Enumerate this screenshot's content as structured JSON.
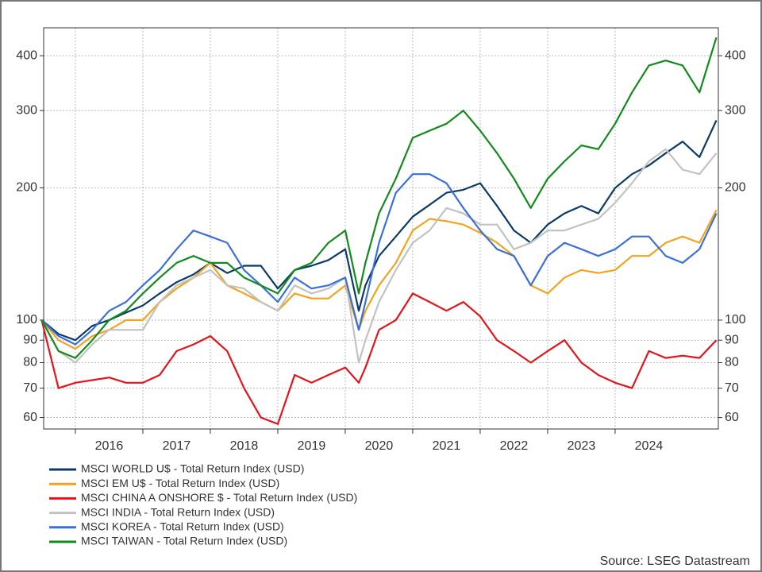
{
  "chart_data": {
    "type": "line",
    "source": "Source: LSEG Datastream",
    "x": [
      2015.5,
      2015.75,
      2016,
      2016.25,
      2016.5,
      2016.75,
      2017,
      2017.25,
      2017.5,
      2017.75,
      2018,
      2018.25,
      2018.5,
      2018.75,
      2019,
      2019.25,
      2019.5,
      2019.75,
      2020,
      2020.2,
      2020.3,
      2020.5,
      2020.75,
      2021,
      2021.25,
      2021.5,
      2021.75,
      2022,
      2022.25,
      2022.5,
      2022.75,
      2023,
      2023.25,
      2023.5,
      2023.75,
      2024,
      2024.25,
      2024.5,
      2024.75,
      2025,
      2025.25,
      2025.5
    ],
    "xlim": [
      2015.53,
      2025.53
    ],
    "xticks": [
      2016,
      2017,
      2018,
      2019,
      2020,
      2021,
      2022,
      2023,
      2024
    ],
    "ylim": [
      56.5,
      463
    ],
    "yticks": [
      60,
      70,
      80,
      90,
      100,
      200,
      300,
      400
    ],
    "yscale": "log",
    "grid": true,
    "series": [
      {
        "name": "MSCI WORLD U$ - Total Return Index (USD)",
        "color": "#0b3a66",
        "values": [
          100,
          93,
          90,
          97,
          100,
          104,
          108,
          115,
          122,
          127,
          135,
          128,
          133,
          133,
          118,
          130,
          133,
          137,
          145,
          105,
          120,
          140,
          155,
          172,
          183,
          195,
          198,
          205,
          182,
          160,
          150,
          165,
          175,
          182,
          175,
          200,
          215,
          225,
          240,
          255,
          235,
          285
        ]
      },
      {
        "name": "MSCI EM U$ - Total Return Index (USD)",
        "color": "#f2a41f",
        "values": [
          100,
          90,
          86,
          92,
          95,
          100,
          100,
          110,
          118,
          125,
          135,
          120,
          115,
          110,
          105,
          115,
          112,
          112,
          120,
          95,
          105,
          120,
          135,
          160,
          170,
          168,
          165,
          158,
          150,
          140,
          120,
          115,
          125,
          130,
          128,
          130,
          140,
          140,
          150,
          155,
          150,
          178
        ]
      },
      {
        "name": "MSCI CHINA A ONSHORE $ - Total Return Index (USD)",
        "color": "#e3141b",
        "values": [
          100,
          70,
          72,
          73,
          74,
          72,
          72,
          75,
          85,
          88,
          92,
          85,
          70,
          60,
          58,
          75,
          72,
          75,
          78,
          72,
          78,
          95,
          100,
          115,
          110,
          105,
          110,
          102,
          90,
          85,
          80,
          85,
          90,
          80,
          75,
          72,
          70,
          85,
          82,
          83,
          82,
          90
        ]
      },
      {
        "name": "MSCI INDIA - Total Return Index (USD)",
        "color": "#c2c2c2",
        "values": [
          100,
          85,
          80,
          88,
          95,
          95,
          95,
          110,
          120,
          125,
          130,
          120,
          118,
          110,
          105,
          120,
          115,
          118,
          125,
          80,
          90,
          110,
          130,
          150,
          160,
          180,
          175,
          165,
          165,
          145,
          150,
          160,
          160,
          165,
          170,
          185,
          205,
          230,
          245,
          220,
          215,
          240
        ]
      },
      {
        "name": "MSCI KOREA - Total Return Index (USD)",
        "color": "#3b6fd9",
        "values": [
          100,
          92,
          88,
          95,
          105,
          110,
          120,
          130,
          145,
          160,
          155,
          150,
          130,
          120,
          110,
          125,
          118,
          120,
          125,
          95,
          110,
          150,
          195,
          215,
          215,
          205,
          180,
          160,
          145,
          140,
          120,
          140,
          150,
          145,
          140,
          145,
          155,
          155,
          140,
          135,
          145,
          175
        ]
      },
      {
        "name": "MSCI TAIWAN - Total Return Index (USD)",
        "color": "#138a1d",
        "values": [
          100,
          85,
          82,
          90,
          100,
          105,
          115,
          125,
          135,
          140,
          135,
          135,
          125,
          120,
          115,
          130,
          135,
          150,
          160,
          115,
          135,
          175,
          210,
          260,
          270,
          280,
          300,
          270,
          240,
          210,
          180,
          210,
          230,
          250,
          245,
          280,
          330,
          380,
          390,
          380,
          330,
          440
        ]
      }
    ]
  }
}
